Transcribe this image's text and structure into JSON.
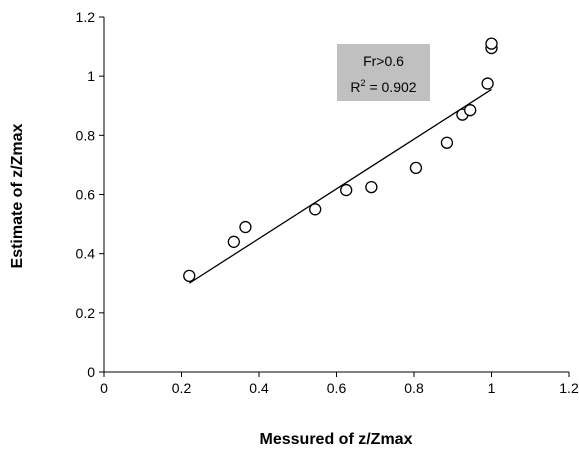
{
  "chart_data": {
    "type": "scatter",
    "xlabel": "Messured of z/Zmax",
    "ylabel": "Estimate of z/Zmax",
    "xlim": [
      0,
      1.2
    ],
    "ylim": [
      0,
      1.2
    ],
    "x_ticks": [
      "0",
      "0.2",
      "0.4",
      "0.6",
      "0.8",
      "1",
      "1.2"
    ],
    "y_ticks": [
      "0",
      "0.2",
      "0.4",
      "0.6",
      "0.8",
      "1",
      "1.2"
    ],
    "grid": false,
    "legend": "none",
    "series": [
      {
        "marker": "open-circle",
        "x": [
          0.22,
          0.335,
          0.365,
          0.545,
          0.625,
          0.69,
          0.805,
          0.885,
          0.925,
          0.945,
          0.99,
          1.0,
          1.0
        ],
        "y": [
          0.325,
          0.44,
          0.49,
          0.55,
          0.615,
          0.625,
          0.69,
          0.775,
          0.87,
          0.885,
          0.975,
          1.095,
          1.11
        ]
      }
    ],
    "trendline": {
      "x": [
        0.22,
        1.0
      ],
      "y": [
        0.3,
        0.955
      ]
    },
    "annotation": {
      "line1": "Fr>0.6",
      "line2_base": "R",
      "line2_sup": "2",
      "line2_rest": " = 0.902"
    },
    "colors": {
      "annotation_bg": "#c0c0c0",
      "axis": "#000000",
      "marker_fill": "#ffffff"
    }
  }
}
